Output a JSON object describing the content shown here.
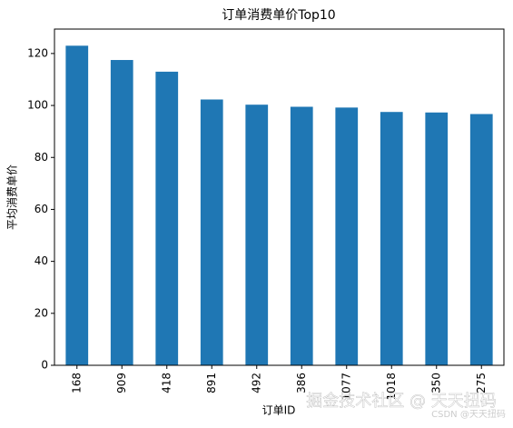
{
  "chart_data": {
    "type": "bar",
    "title": "订单消费单价Top10",
    "x_label": "订单ID",
    "y_label": "平均消费单价",
    "categories": [
      "168",
      "909",
      "418",
      "891",
      "492",
      "386",
      "1077",
      "1018",
      "350",
      "275"
    ],
    "values": [
      123,
      117.5,
      113,
      102.3,
      100.3,
      99.5,
      99.2,
      97.5,
      97.3,
      96.7
    ],
    "color": "#1f77b4",
    "ylim": [
      0,
      129.4
    ],
    "yticks": [
      0,
      20,
      40,
      60,
      80,
      100,
      120
    ],
    "grid": false
  },
  "watermark": {
    "main": "掘金技术社区 @ 天天扭码",
    "small": "CSDN @天天扭码"
  }
}
